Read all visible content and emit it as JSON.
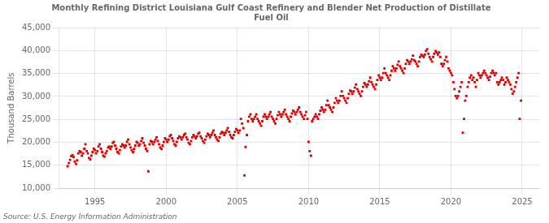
{
  "chart_data": {
    "type": "scatter",
    "title": "Monthly Refining District Louisiana Gulf Coast Refinery and Blender Net Production of Distillate\nFuel Oil",
    "ylabel": "Thousand Barrels",
    "annotation": "Source: U.S. Energy Information Administration",
    "color": "#dd0000",
    "marker": "square",
    "grid": true,
    "xlim": [
      1992.5,
      2026.2
    ],
    "xticks": [
      1995,
      2000,
      2005,
      2010,
      2015,
      2020,
      2025
    ],
    "ylim": [
      10000,
      45000
    ],
    "yticks": [
      {
        "value": 10000,
        "label": "10,000"
      },
      {
        "value": 15000,
        "label": "15,000"
      },
      {
        "value": 20000,
        "label": "20,000"
      },
      {
        "value": 25000,
        "label": "25,000"
      },
      {
        "value": 30000,
        "label": "30,000"
      },
      {
        "value": 35000,
        "label": "35,000"
      },
      {
        "value": 40000,
        "label": "40,000"
      },
      {
        "value": 45000,
        "label": "45,000"
      }
    ],
    "x": [
      1993.08,
      1993.17,
      1993.25,
      1993.33,
      1993.42,
      1993.5,
      1993.58,
      1993.67,
      1993.75,
      1993.83,
      1993.92,
      1994.0,
      1994.08,
      1994.17,
      1994.25,
      1994.33,
      1994.42,
      1994.5,
      1994.58,
      1994.67,
      1994.75,
      1994.83,
      1994.92,
      1995.0,
      1995.08,
      1995.17,
      1995.25,
      1995.33,
      1995.42,
      1995.5,
      1995.58,
      1995.67,
      1995.75,
      1995.83,
      1995.92,
      1996.0,
      1996.08,
      1996.17,
      1996.25,
      1996.33,
      1996.42,
      1996.5,
      1996.58,
      1996.67,
      1996.75,
      1996.83,
      1996.92,
      1997.0,
      1997.08,
      1997.17,
      1997.25,
      1997.33,
      1997.42,
      1997.5,
      1997.58,
      1997.67,
      1997.75,
      1997.83,
      1997.92,
      1998.0,
      1998.08,
      1998.17,
      1998.25,
      1998.33,
      1998.42,
      1998.5,
      1998.58,
      1998.67,
      1998.75,
      1998.83,
      1998.92,
      1999.0,
      1999.08,
      1999.17,
      1999.25,
      1999.33,
      1999.42,
      1999.5,
      1999.58,
      1999.67,
      1999.75,
      1999.83,
      1999.92,
      2000.0,
      2000.08,
      2000.17,
      2000.25,
      2000.33,
      2000.42,
      2000.5,
      2000.58,
      2000.67,
      2000.75,
      2000.83,
      2000.92,
      2001.0,
      2001.08,
      2001.17,
      2001.25,
      2001.33,
      2001.42,
      2001.5,
      2001.58,
      2001.67,
      2001.75,
      2001.83,
      2001.92,
      2002.0,
      2002.08,
      2002.17,
      2002.25,
      2002.33,
      2002.42,
      2002.5,
      2002.58,
      2002.67,
      2002.75,
      2002.83,
      2002.92,
      2003.0,
      2003.08,
      2003.17,
      2003.25,
      2003.33,
      2003.42,
      2003.5,
      2003.58,
      2003.67,
      2003.75,
      2003.83,
      2003.92,
      2004.0,
      2004.08,
      2004.17,
      2004.25,
      2004.33,
      2004.42,
      2004.5,
      2004.58,
      2004.67,
      2004.75,
      2004.83,
      2004.92,
      2005.0,
      2005.08,
      2005.17,
      2005.25,
      2005.33,
      2005.42,
      2005.5,
      2005.58,
      2005.67,
      2005.75,
      2005.83,
      2005.92,
      2006.0,
      2006.08,
      2006.17,
      2006.25,
      2006.33,
      2006.42,
      2006.5,
      2006.58,
      2006.67,
      2006.75,
      2006.83,
      2006.92,
      2007.0,
      2007.08,
      2007.17,
      2007.25,
      2007.33,
      2007.42,
      2007.5,
      2007.58,
      2007.67,
      2007.75,
      2007.83,
      2007.92,
      2008.0,
      2008.08,
      2008.17,
      2008.25,
      2008.33,
      2008.42,
      2008.5,
      2008.58,
      2008.67,
      2008.75,
      2008.83,
      2008.92,
      2009.0,
      2009.08,
      2009.17,
      2009.25,
      2009.33,
      2009.42,
      2009.5,
      2009.58,
      2009.67,
      2009.75,
      2009.83,
      2009.92,
      2010.0,
      2010.08,
      2010.17,
      2010.25,
      2010.33,
      2010.42,
      2010.5,
      2010.58,
      2010.67,
      2010.75,
      2010.83,
      2010.92,
      2011.0,
      2011.08,
      2011.17,
      2011.25,
      2011.33,
      2011.42,
      2011.5,
      2011.58,
      2011.67,
      2011.75,
      2011.83,
      2011.92,
      2012.0,
      2012.08,
      2012.17,
      2012.25,
      2012.33,
      2012.42,
      2012.5,
      2012.58,
      2012.67,
      2012.75,
      2012.83,
      2012.92,
      2013.0,
      2013.08,
      2013.17,
      2013.25,
      2013.33,
      2013.42,
      2013.5,
      2013.58,
      2013.67,
      2013.75,
      2013.83,
      2013.92,
      2014.0,
      2014.08,
      2014.17,
      2014.25,
      2014.33,
      2014.42,
      2014.5,
      2014.58,
      2014.67,
      2014.75,
      2014.83,
      2014.92,
      2015.0,
      2015.08,
      2015.17,
      2015.25,
      2015.33,
      2015.42,
      2015.5,
      2015.58,
      2015.67,
      2015.75,
      2015.83,
      2015.92,
      2016.0,
      2016.08,
      2016.17,
      2016.25,
      2016.33,
      2016.42,
      2016.5,
      2016.58,
      2016.67,
      2016.75,
      2016.83,
      2016.92,
      2017.0,
      2017.08,
      2017.17,
      2017.25,
      2017.33,
      2017.42,
      2017.5,
      2017.58,
      2017.67,
      2017.75,
      2017.83,
      2017.92,
      2018.0,
      2018.08,
      2018.17,
      2018.25,
      2018.33,
      2018.42,
      2018.5,
      2018.58,
      2018.67,
      2018.75,
      2018.83,
      2018.92,
      2019.0,
      2019.08,
      2019.17,
      2019.25,
      2019.33,
      2019.42,
      2019.5,
      2019.58,
      2019.67,
      2019.75,
      2019.83,
      2019.92,
      2020.0,
      2020.08,
      2020.17,
      2020.25,
      2020.33,
      2020.42,
      2020.5,
      2020.58,
      2020.67,
      2020.75,
      2020.83,
      2020.92,
      2021.0,
      2021.08,
      2021.17,
      2021.25,
      2021.33,
      2021.42,
      2021.5,
      2021.58,
      2021.67,
      2021.75,
      2021.83,
      2021.92,
      2022.0,
      2022.08,
      2022.17,
      2022.25,
      2022.33,
      2022.42,
      2022.5,
      2022.58,
      2022.67,
      2022.75,
      2022.83,
      2022.92,
      2023.0,
      2023.08,
      2023.17,
      2023.25,
      2023.33,
      2023.42,
      2023.5,
      2023.58,
      2023.67,
      2023.75,
      2023.83,
      2023.92,
      2024.0,
      2024.08,
      2024.17,
      2024.25,
      2024.33,
      2024.42,
      2024.5,
      2024.58,
      2024.67,
      2024.75,
      2024.83,
      2024.92
    ],
    "values": [
      14800,
      15500,
      16200,
      17000,
      17200,
      16800,
      15800,
      15300,
      16100,
      17600,
      18100,
      17900,
      17100,
      17600,
      18600,
      19600,
      18100,
      17600,
      16600,
      16300,
      17100,
      17900,
      18600,
      18300,
      17600,
      18100,
      19100,
      19600,
      18600,
      17900,
      17100,
      16900,
      17600,
      18100,
      18900,
      19100,
      18600,
      19100,
      19900,
      20100,
      19300,
      18600,
      17900,
      17600,
      18300,
      19100,
      19600,
      19300,
      18900,
      19300,
      20100,
      20600,
      19600,
      18900,
      18300,
      17900,
      18600,
      19300,
      20100,
      19900,
      19300,
      19600,
      20300,
      20900,
      19900,
      19300,
      18600,
      18100,
      13700,
      19600,
      20300,
      20100,
      19600,
      20100,
      20600,
      21100,
      20300,
      19600,
      18900,
      18600,
      19300,
      20100,
      20900,
      20600,
      20100,
      20600,
      21300,
      21600,
      20900,
      20300,
      19600,
      19300,
      20100,
      20900,
      21300,
      21100,
      20600,
      21100,
      21600,
      21900,
      21100,
      20600,
      19900,
      19600,
      20300,
      21100,
      21600,
      21300,
      20900,
      21300,
      21900,
      22100,
      21300,
      20900,
      20300,
      19900,
      20600,
      21300,
      21900,
      21600,
      21100,
      21600,
      22100,
      22600,
      21600,
      21100,
      20600,
      20300,
      21100,
      21900,
      22300,
      22100,
      21600,
      22100,
      22600,
      23100,
      22300,
      21600,
      21100,
      20900,
      21600,
      22300,
      22900,
      22600,
      22100,
      22600,
      25100,
      24100,
      23100,
      12800,
      19000,
      21600,
      24600,
      25600,
      26100,
      25100,
      24600,
      25100,
      25600,
      26100,
      25100,
      24600,
      24100,
      23600,
      24600,
      25600,
      26100,
      25600,
      25100,
      25600,
      26100,
      26600,
      25600,
      25100,
      24600,
      24100,
      25100,
      25900,
      26600,
      26100,
      25600,
      26100,
      26600,
      27100,
      26100,
      25600,
      25100,
      24600,
      25600,
      26300,
      26900,
      26600,
      26100,
      26600,
      27100,
      27600,
      26600,
      26100,
      25600,
      25100,
      25900,
      26600,
      25100,
      20100,
      18100,
      17100,
      24600,
      25100,
      25600,
      26100,
      25600,
      25100,
      26100,
      26900,
      27600,
      27100,
      26600,
      27100,
      28100,
      29100,
      28100,
      27600,
      27100,
      26600,
      27600,
      28600,
      29600,
      29100,
      28600,
      29100,
      30100,
      31100,
      30100,
      29600,
      29100,
      28600,
      29600,
      30600,
      31300,
      31100,
      30600,
      31100,
      31900,
      32600,
      31600,
      31100,
      30600,
      30100,
      31100,
      32100,
      32900,
      32600,
      32100,
      32600,
      33300,
      34100,
      33100,
      32600,
      32100,
      31600,
      32600,
      33600,
      34600,
      34100,
      33600,
      34100,
      35100,
      36100,
      35100,
      34600,
      34100,
      33600,
      34600,
      35600,
      36600,
      36100,
      35600,
      36100,
      36900,
      37600,
      36600,
      36100,
      35600,
      35100,
      36100,
      37100,
      37900,
      37600,
      37100,
      37600,
      38100,
      38900,
      37900,
      37600,
      37100,
      36600,
      37600,
      38600,
      39100,
      38900,
      38600,
      39100,
      39900,
      40300,
      39300,
      38600,
      38100,
      37600,
      38600,
      39300,
      39900,
      39600,
      39100,
      39600,
      38600,
      37100,
      36600,
      37100,
      37900,
      38600,
      37600,
      36100,
      35600,
      35100,
      34600,
      33100,
      31600,
      30100,
      29600,
      30100,
      31100,
      32100,
      33100,
      22100,
      25100,
      29100,
      30100,
      32100,
      33100,
      34100,
      34600,
      33600,
      34100,
      33100,
      32100,
      33600,
      35100,
      34600,
      34100,
      34600,
      35100,
      35600,
      35100,
      34600,
      34100,
      33600,
      34300,
      35100,
      35600,
      35100,
      34600,
      35100,
      33100,
      32600,
      33100,
      33600,
      34100,
      33600,
      32600,
      33100,
      34100,
      33600,
      33100,
      32600,
      31600,
      30600,
      31100,
      32100,
      33100,
      34100,
      35100,
      25100,
      29100
    ]
  }
}
